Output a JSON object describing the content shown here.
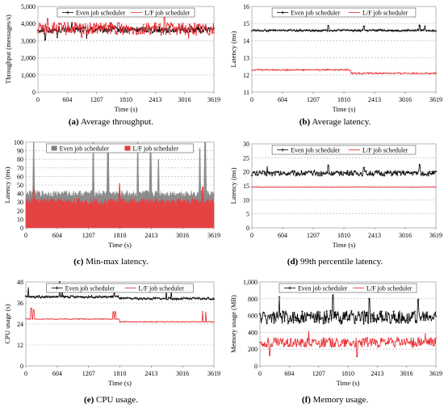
{
  "figure": {
    "captions": [
      {
        "letter": "(a)",
        "text": "Average throughput."
      },
      {
        "letter": "(b)",
        "text": "Average latency."
      },
      {
        "letter": "(c)",
        "text": "Min-max latency."
      },
      {
        "letter": "(d)",
        "text": "99th percentile latency."
      },
      {
        "letter": "(e)",
        "text": "CPU usage."
      },
      {
        "letter": "(f)",
        "text": "Memory usage."
      }
    ]
  },
  "colors": {
    "even": "#000000",
    "lf": "#e8242a",
    "even_fill": "#808080",
    "lf_fill": "#ee3b3b",
    "grid": "#b0b0b0"
  },
  "chart_data": [
    {
      "id": "a",
      "type": "line",
      "xlabel": "Time (s)",
      "ylabel": "Throughput (messages/s)",
      "xticks": [
        0,
        604,
        1207,
        1810,
        2413,
        3016,
        3619
      ],
      "xlim": [
        0,
        3619
      ],
      "yticks": [
        "0",
        "1,000",
        "2,000",
        "3,000",
        "4,000",
        "5,000"
      ],
      "ylim": [
        0,
        5000
      ],
      "grid": true,
      "legend_position": "top",
      "series": [
        {
          "name": "Even job scheduler",
          "style": "even",
          "mean": 3650,
          "noise": 180,
          "spikes": [
            [
              150,
              3050
            ],
            [
              400,
              3200
            ],
            [
              700,
              4100
            ],
            [
              1000,
              3100
            ],
            [
              1500,
              4050
            ]
          ]
        },
        {
          "name": "L/F job scheduler",
          "style": "lf",
          "mean": 3700,
          "noise": 380,
          "spikes": [
            [
              200,
              4300
            ],
            [
              900,
              3200
            ],
            [
              2600,
              4350
            ],
            [
              3100,
              3100
            ]
          ]
        }
      ]
    },
    {
      "id": "b",
      "type": "line",
      "xlabel": "Time (s)",
      "ylabel": "Latency (ms)",
      "xticks": [
        0,
        604,
        1207,
        1810,
        2413,
        3016,
        3619
      ],
      "xlim": [
        0,
        3619
      ],
      "yticks": [
        "11",
        "12",
        "13",
        "14",
        "15",
        "16"
      ],
      "ylim": [
        11,
        16
      ],
      "grid": true,
      "legend_position": "top",
      "series": [
        {
          "name": "Even job scheduler",
          "style": "even",
          "mean": 14.6,
          "noise": 0.05,
          "spikes": [
            [
              1500,
              14.9
            ],
            [
              2200,
              14.85
            ],
            [
              3300,
              14.9
            ],
            [
              3400,
              14.85
            ]
          ]
        },
        {
          "name": "L/F job scheduler",
          "style": "lf",
          "segments": [
            [
              0,
              1950,
              12.3
            ],
            [
              1950,
              3619,
              12.1
            ]
          ],
          "noise": 0.04
        }
      ]
    },
    {
      "id": "c",
      "type": "area",
      "xlabel": "Time (s)",
      "ylabel": "Latency (ms)",
      "xticks": [
        0,
        604,
        1207,
        1810,
        2413,
        3016,
        3619
      ],
      "xlim": [
        0,
        3619
      ],
      "yticks": [
        "0",
        "10",
        "20",
        "30",
        "40",
        "50",
        "60",
        "70",
        "80",
        "90",
        "100"
      ],
      "ylim": [
        0,
        100
      ],
      "grid": true,
      "legend_position": "top",
      "series": [
        {
          "name": "Even job scheduler",
          "style": "even_fill",
          "min": 0,
          "max_mean": 40,
          "max_noise": 4,
          "spikes": [
            [
              150,
              100
            ],
            [
              1300,
              100
            ],
            [
              1580,
              95
            ],
            [
              2150,
              100
            ],
            [
              2400,
              90
            ],
            [
              2550,
              80
            ],
            [
              3350,
              93
            ],
            [
              3450,
              100
            ]
          ]
        },
        {
          "name": "L/F job scheduler",
          "style": "lf_fill",
          "min": 0,
          "max_mean": 31,
          "max_noise": 4,
          "spikes": [
            [
              150,
              48
            ],
            [
              1800,
              52
            ],
            [
              3400,
              48
            ]
          ]
        }
      ]
    },
    {
      "id": "d",
      "type": "line",
      "xlabel": "Time (s)",
      "ylabel": "Latency (ms)",
      "xticks": [
        0,
        604,
        1207,
        1810,
        2413,
        3016,
        3619
      ],
      "xlim": [
        0,
        3619
      ],
      "yticks": [
        "0",
        "5",
        "10",
        "15",
        "20",
        "25",
        "30"
      ],
      "ylim": [
        0,
        30
      ],
      "grid": true,
      "legend_position": "top",
      "series": [
        {
          "name": "Even job scheduler",
          "style": "even",
          "mean": 19.5,
          "noise": 0.9,
          "spikes": [
            [
              300,
              22
            ],
            [
              1500,
              22.5
            ],
            [
              2200,
              21.5
            ],
            [
              3300,
              22.5
            ]
          ]
        },
        {
          "name": "L/F job scheduler",
          "style": "lf",
          "mean": 14.5,
          "noise": 0.05,
          "spikes": []
        }
      ]
    },
    {
      "id": "e",
      "type": "line",
      "xlabel": "Time (s)",
      "ylabel": "CPU usage (s)",
      "xticks": [
        0,
        604,
        1207,
        1810,
        2413,
        3016,
        3619
      ],
      "xlim": [
        0,
        3619
      ],
      "yticks": [
        "0",
        "12",
        "24",
        "36",
        "48"
      ],
      "ylim": [
        0,
        48
      ],
      "grid": true,
      "legend_position": "top",
      "series": [
        {
          "name": "Even job scheduler",
          "style": "even",
          "segments": [
            [
              0,
              1800,
              39.5
            ],
            [
              1800,
              3619,
              38.5
            ]
          ],
          "noise": 0.6,
          "spikes": [
            [
              50,
              45
            ],
            [
              650,
              48
            ],
            [
              700,
              44
            ],
            [
              1700,
              43
            ],
            [
              2700,
              43
            ],
            [
              2800,
              43
            ]
          ]
        },
        {
          "name": "L/F job scheduler",
          "style": "lf",
          "segments": [
            [
              0,
              1800,
              26.8
            ],
            [
              1800,
              3619,
              25.2
            ]
          ],
          "noise": 0.2,
          "spikes": [
            [
              100,
              33
            ],
            [
              150,
              32
            ],
            [
              1680,
              31
            ],
            [
              1720,
              31
            ],
            [
              3400,
              31
            ],
            [
              3460,
              31
            ]
          ]
        }
      ]
    },
    {
      "id": "f",
      "type": "line",
      "xlabel": "Time (s)",
      "ylabel": "Memory usage (MB)",
      "xticks": [
        0,
        604,
        1207,
        1810,
        2413,
        3016,
        3619
      ],
      "xlim": [
        0,
        3619
      ],
      "yticks": [
        "0",
        "200",
        "400",
        "600",
        "800",
        "1,000"
      ],
      "ylim": [
        0,
        1000
      ],
      "grid": true,
      "legend_position": "top",
      "series": [
        {
          "name": "Even job scheduler",
          "style": "even",
          "mean": 580,
          "noise": 80,
          "spikes": [
            [
              400,
              820
            ],
            [
              1500,
              850
            ],
            [
              2250,
              800
            ],
            [
              3250,
              790
            ]
          ]
        },
        {
          "name": "L/F job scheduler",
          "style": "lf",
          "mean": 280,
          "noise": 60,
          "spikes": [
            [
              200,
              120
            ],
            [
              1000,
              420
            ],
            [
              2000,
              110
            ],
            [
              3400,
              380
            ]
          ]
        }
      ]
    }
  ]
}
